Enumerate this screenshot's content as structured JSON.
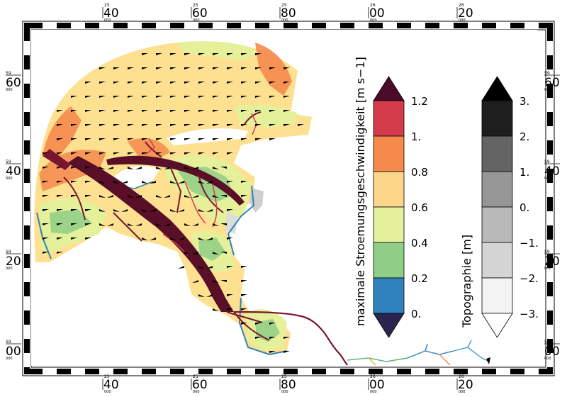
{
  "map": {
    "x_ticks": [
      {
        "label": "40",
        "super": "25",
        "sub": "000"
      },
      {
        "label": "60",
        "super": "25",
        "sub": "000"
      },
      {
        "label": "80",
        "super": "25",
        "sub": "000"
      },
      {
        "label": "00",
        "super": "26",
        "sub": "000"
      },
      {
        "label": "20",
        "super": "26",
        "sub": "000"
      }
    ],
    "y_ticks": [
      {
        "label": "60",
        "super": "59",
        "sub": "000"
      },
      {
        "label": "40",
        "super": "59",
        "sub": "000"
      },
      {
        "label": "20",
        "super": "59",
        "sub": "000"
      },
      {
        "label": "00",
        "super": "59",
        "sub": "000"
      }
    ]
  },
  "legend_speed": {
    "title": "maximale Stroemungsgeschwindigkeit [m s−1]",
    "labels": [
      "1.2",
      "1.",
      "0.8",
      "0.6",
      "0.4",
      "0.2",
      "0."
    ],
    "colors": [
      "#4a0b2a",
      "#d43c4c",
      "#f58a4c",
      "#fdd68a",
      "#e4f09a",
      "#8fce86",
      "#2f82bc",
      "#2a2450"
    ]
  },
  "legend_topo": {
    "title": "Topographie [m]",
    "labels": [
      "3.",
      "2.",
      "1.",
      "0.",
      "−1.",
      "−2.",
      "−3."
    ],
    "colors": [
      "#000000",
      "#1e1e1e",
      "#646464",
      "#969696",
      "#b9b9b9",
      "#d4d4d4",
      "#f3f3f3",
      "#ffffff"
    ]
  },
  "palette": {
    "water_base": "#fde191",
    "shoal": "#e4f09a",
    "shoal_green": "#8fce86",
    "channel": "#5a0f28",
    "edge_blue": "#2f82bc",
    "red": "#d43c4c",
    "orange": "#f58a4c",
    "land": "#ffffff",
    "land_gray": "#cfcfcf"
  }
}
